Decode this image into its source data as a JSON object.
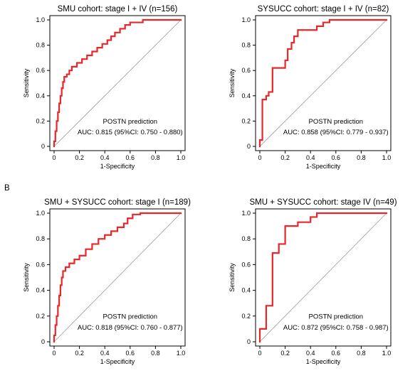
{
  "panel_letter": "B",
  "chart_data": [
    {
      "type": "line",
      "title": "SMU cohort: stage I + IV (n=156)",
      "xlabel": "1-Specificity",
      "ylabel": "Sensitivity",
      "xlim": [
        0,
        1
      ],
      "ylim": [
        0,
        1
      ],
      "xticks": [
        "0",
        "0.2",
        "0.4",
        "0.6",
        "0.8",
        "1.0"
      ],
      "yticks": [
        "0",
        "0.2",
        "0.4",
        "0.6",
        "0.8",
        "1.0"
      ],
      "grid": false,
      "legend": "none",
      "annotation_line1": "POSTN prediction",
      "annotation_line2": "AUC: 0.815 (95%CI: 0.750 - 0.880)",
      "series": [
        {
          "color": "#e8272a",
          "x": [
            0,
            0,
            0.01,
            0.01,
            0.02,
            0.02,
            0.03,
            0.03,
            0.04,
            0.04,
            0.05,
            0.05,
            0.06,
            0.06,
            0.07,
            0.07,
            0.08,
            0.08,
            0.1,
            0.1,
            0.12,
            0.12,
            0.14,
            0.14,
            0.18,
            0.18,
            0.22,
            0.22,
            0.26,
            0.26,
            0.3,
            0.3,
            0.34,
            0.34,
            0.38,
            0.38,
            0.42,
            0.42,
            0.45,
            0.45,
            0.48,
            0.48,
            0.52,
            0.52,
            0.56,
            0.56,
            0.6,
            0.6,
            0.7,
            0.7,
            1.0
          ],
          "y": [
            0,
            0.04,
            0.04,
            0.12,
            0.12,
            0.2,
            0.2,
            0.27,
            0.27,
            0.34,
            0.34,
            0.4,
            0.4,
            0.46,
            0.46,
            0.51,
            0.51,
            0.55,
            0.55,
            0.57,
            0.57,
            0.6,
            0.6,
            0.63,
            0.63,
            0.66,
            0.66,
            0.69,
            0.69,
            0.72,
            0.72,
            0.75,
            0.75,
            0.78,
            0.78,
            0.81,
            0.81,
            0.84,
            0.84,
            0.87,
            0.87,
            0.9,
            0.9,
            0.93,
            0.93,
            0.96,
            0.96,
            0.98,
            0.98,
            1.0,
            1.0
          ]
        }
      ]
    },
    {
      "type": "line",
      "title": "SYSUCC cohort: stage I + IV (n=82)",
      "xlabel": "1-Specificity",
      "ylabel": "Sensitivity",
      "xlim": [
        0,
        1
      ],
      "ylim": [
        0,
        1
      ],
      "xticks": [
        "0",
        "0.2",
        "0.4",
        "0.6",
        "0.8",
        "1.0"
      ],
      "yticks": [
        "0",
        "0.2",
        "0.4",
        "0.6",
        "0.8",
        "1.0"
      ],
      "grid": false,
      "legend": "none",
      "annotation_line1": "POSTN prediction",
      "annotation_line2": "AUC: 0.858 (95%CI: 0.779 - 0.937)",
      "series": [
        {
          "color": "#e8272a",
          "x": [
            0,
            0,
            0.02,
            0.02,
            0.05,
            0.05,
            0.07,
            0.07,
            0.1,
            0.1,
            0.2,
            0.2,
            0.22,
            0.22,
            0.25,
            0.25,
            0.27,
            0.27,
            0.3,
            0.3,
            0.45,
            0.45,
            0.5,
            0.5,
            0.55,
            0.55,
            1.0
          ],
          "y": [
            0,
            0.05,
            0.05,
            0.37,
            0.37,
            0.4,
            0.4,
            0.43,
            0.43,
            0.62,
            0.62,
            0.68,
            0.68,
            0.77,
            0.77,
            0.82,
            0.82,
            0.87,
            0.87,
            0.92,
            0.92,
            0.95,
            0.95,
            0.98,
            0.98,
            1.0,
            1.0
          ]
        }
      ]
    },
    {
      "type": "line",
      "title": "SMU + SYSUCC cohort: stage I (n=189)",
      "xlabel": "1-Specificity",
      "ylabel": "Sensitivity",
      "xlim": [
        0,
        1
      ],
      "ylim": [
        0,
        1
      ],
      "xticks": [
        "0",
        "0.2",
        "0.4",
        "0.6",
        "0.8",
        "1.0"
      ],
      "yticks": [
        "0",
        "0.2",
        "0.4",
        "0.6",
        "0.8",
        "1.0"
      ],
      "grid": false,
      "legend": "none",
      "annotation_line1": "POSTN prediction",
      "annotation_line2": "AUC: 0.818 (95%CI: 0.760 - 0.877)",
      "series": [
        {
          "color": "#e8272a",
          "x": [
            0,
            0,
            0.01,
            0.01,
            0.02,
            0.02,
            0.03,
            0.03,
            0.04,
            0.04,
            0.05,
            0.05,
            0.06,
            0.06,
            0.07,
            0.07,
            0.09,
            0.09,
            0.12,
            0.12,
            0.16,
            0.16,
            0.2,
            0.2,
            0.25,
            0.25,
            0.3,
            0.3,
            0.35,
            0.35,
            0.4,
            0.4,
            0.45,
            0.45,
            0.5,
            0.5,
            0.55,
            0.55,
            0.58,
            0.58,
            0.62,
            0.62,
            0.68,
            0.68,
            1.0
          ],
          "y": [
            0,
            0.05,
            0.05,
            0.13,
            0.13,
            0.2,
            0.2,
            0.28,
            0.28,
            0.36,
            0.36,
            0.44,
            0.44,
            0.5,
            0.5,
            0.55,
            0.55,
            0.58,
            0.58,
            0.61,
            0.61,
            0.64,
            0.64,
            0.67,
            0.67,
            0.72,
            0.72,
            0.76,
            0.76,
            0.8,
            0.8,
            0.83,
            0.83,
            0.86,
            0.86,
            0.89,
            0.89,
            0.92,
            0.92,
            0.96,
            0.96,
            0.99,
            0.99,
            1.0,
            1.0
          ]
        }
      ]
    },
    {
      "type": "line",
      "title": "SMU + SYSUCC cohort: stage IV (n=49)",
      "xlabel": "1-Specificity",
      "ylabel": "Sensitivity",
      "xlim": [
        0,
        1
      ],
      "ylim": [
        0,
        1
      ],
      "xticks": [
        "0",
        "0.2",
        "0.4",
        "0.6",
        "0.8",
        "1.0"
      ],
      "yticks": [
        "0",
        "0.2",
        "0.4",
        "0.6",
        "0.8",
        "1.0"
      ],
      "grid": false,
      "legend": "none",
      "annotation_line1": "POSTN prediction",
      "annotation_line2": "AUC: 0.872 (95%CI: 0.758 - 0.987)",
      "series": [
        {
          "color": "#e8272a",
          "x": [
            0,
            0,
            0.05,
            0.05,
            0.1,
            0.1,
            0.15,
            0.15,
            0.2,
            0.2,
            0.25,
            0.25,
            0.3,
            0.3,
            0.4,
            0.4,
            0.45,
            0.45,
            1.0
          ],
          "y": [
            0,
            0.1,
            0.1,
            0.28,
            0.28,
            0.69,
            0.69,
            0.76,
            0.76,
            0.9,
            0.9,
            0.9,
            0.9,
            0.93,
            0.93,
            0.97,
            0.97,
            1.0,
            1.0
          ]
        }
      ]
    }
  ]
}
